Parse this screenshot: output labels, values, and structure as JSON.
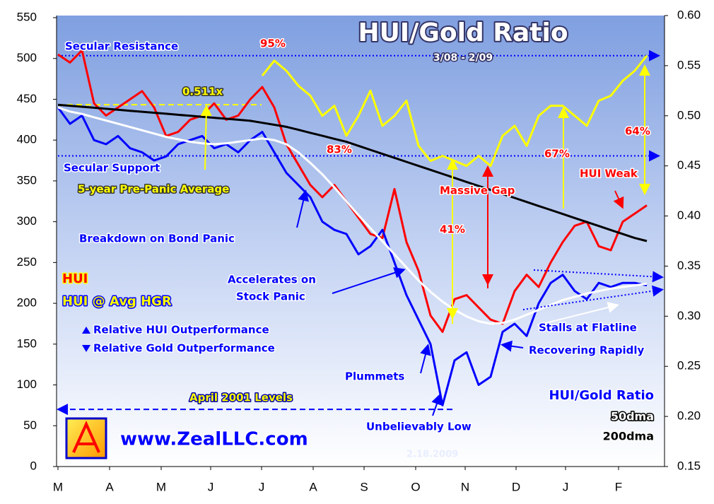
{
  "chart_data": {
    "type": "line",
    "title": "HUI/Gold Ratio",
    "subtitle": "3/08 - 2/09",
    "x_labels": [
      "M",
      "A",
      "M",
      "J",
      "J",
      "A",
      "S",
      "O",
      "N",
      "D",
      "J",
      "F"
    ],
    "ylim": [
      0,
      550
    ],
    "yticks": [
      0,
      50,
      100,
      150,
      200,
      250,
      300,
      350,
      400,
      450,
      500,
      550
    ],
    "y2lim": [
      0.15,
      0.6
    ],
    "y2ticks": [
      0.15,
      {
        "value": 0.2,
        "label": "0.20"
      },
      0.25,
      {
        "value": 0.3,
        "label": "0.30"
      },
      0.35,
      {
        "value": 0.4,
        "label": "0.40"
      },
      0.45,
      {
        "value": 0.5,
        "label": "0.50"
      },
      0.55,
      {
        "value": 0.6,
        "label": "0.60"
      }
    ],
    "series": [
      {
        "name": "HUI",
        "color": "#ff0000",
        "values": [
          505,
          495,
          510,
          445,
          430,
          440,
          450,
          460,
          440,
          405,
          410,
          425,
          430,
          445,
          425,
          430,
          450,
          465,
          440,
          395,
          370,
          345,
          330,
          345,
          325,
          305,
          285,
          280,
          340,
          275,
          240,
          185,
          165,
          205,
          210,
          195,
          180,
          175,
          215,
          235,
          220,
          250,
          275,
          295,
          300,
          270,
          265,
          300,
          310,
          320
        ]
      },
      {
        "name": "HUI @ Avg HGR",
        "color": "#0000ff",
        "values": [
          440,
          420,
          430,
          400,
          395,
          405,
          390,
          385,
          375,
          380,
          395,
          400,
          405,
          390,
          395,
          385,
          400,
          410,
          385,
          360,
          345,
          330,
          300,
          290,
          285,
          260,
          270,
          290,
          250,
          210,
          180,
          150,
          75,
          130,
          140,
          100,
          110,
          165,
          175,
          160,
          200,
          225,
          235,
          215,
          205,
          225,
          220,
          225,
          225,
          222
        ]
      },
      {
        "name": "HUI/Gold Ratio",
        "color": "#ffff00",
        "axis": "y2",
        "values": [
          null,
          null,
          null,
          null,
          null,
          null,
          null,
          null,
          null,
          null,
          null,
          null,
          null,
          null,
          null,
          null,
          null,
          0.54,
          0.555,
          0.545,
          0.53,
          0.52,
          0.5,
          0.51,
          0.48,
          0.5,
          0.525,
          0.49,
          0.5,
          0.515,
          0.47,
          0.455,
          0.46,
          0.455,
          0.45,
          0.46,
          0.45,
          0.48,
          0.49,
          0.47,
          0.5,
          0.51,
          0.51,
          0.5,
          0.49,
          0.515,
          0.52,
          0.535,
          0.545,
          0.56
        ]
      },
      {
        "name": "50dma",
        "color": "#ffffff",
        "values": [
          440,
          435,
          432,
          428,
          424,
          420,
          416,
          412,
          408,
          404,
          401,
          398,
          396,
          395,
          396,
          398,
          400,
          402,
          400,
          395,
          385,
          372,
          358,
          342,
          325,
          308,
          292,
          276,
          260,
          244,
          228,
          214,
          202,
          192,
          184,
          178,
          175,
          176,
          180,
          186,
          192,
          198,
          204,
          208,
          212,
          215,
          218,
          220,
          222,
          224
        ]
      },
      {
        "name": "200dma",
        "color": "#000000",
        "axis": "y2",
        "values": [
          0.511,
          0.51,
          0.509,
          0.508,
          0.507,
          0.506,
          0.505,
          0.504,
          0.503,
          0.502,
          0.501,
          0.5,
          0.499,
          0.498,
          0.497,
          0.496,
          0.495,
          0.493,
          0.491,
          0.489,
          0.486,
          0.483,
          0.48,
          0.477,
          0.474,
          0.47,
          0.466,
          0.462,
          0.458,
          0.454,
          0.45,
          0.446,
          0.442,
          0.438,
          0.434,
          0.43,
          0.426,
          0.422,
          0.418,
          0.414,
          0.41,
          0.406,
          0.402,
          0.398,
          0.394,
          0.39,
          0.386,
          0.382,
          0.378,
          0.375
        ]
      }
    ],
    "reference_lines": [
      {
        "label": "Secular Resistance",
        "value": 0.56,
        "axis": "y2"
      },
      {
        "label": "Secular Support",
        "value": 0.46,
        "axis": "y2"
      },
      {
        "label": "0.511x",
        "value": 0.511,
        "axis": "y2"
      },
      {
        "label": "April 2001 Levels",
        "value": 70
      }
    ],
    "annotations": [
      "95%",
      "83%",
      "41%",
      "67%",
      "64%",
      "5-year Pre-Panic Average",
      "Breakdown on Bond Panic",
      "Massive Gap",
      "HUI Weak",
      "Accelerates on",
      "Stock Panic",
      "Plummets",
      "Unbelievably Low",
      "Stalls at Flatline",
      "Recovering Rapidly",
      "Relative HUI Outperformance",
      "Relative Gold Outperformance"
    ],
    "website": "www.ZealLLC.com",
    "date": "2.18.2009"
  }
}
